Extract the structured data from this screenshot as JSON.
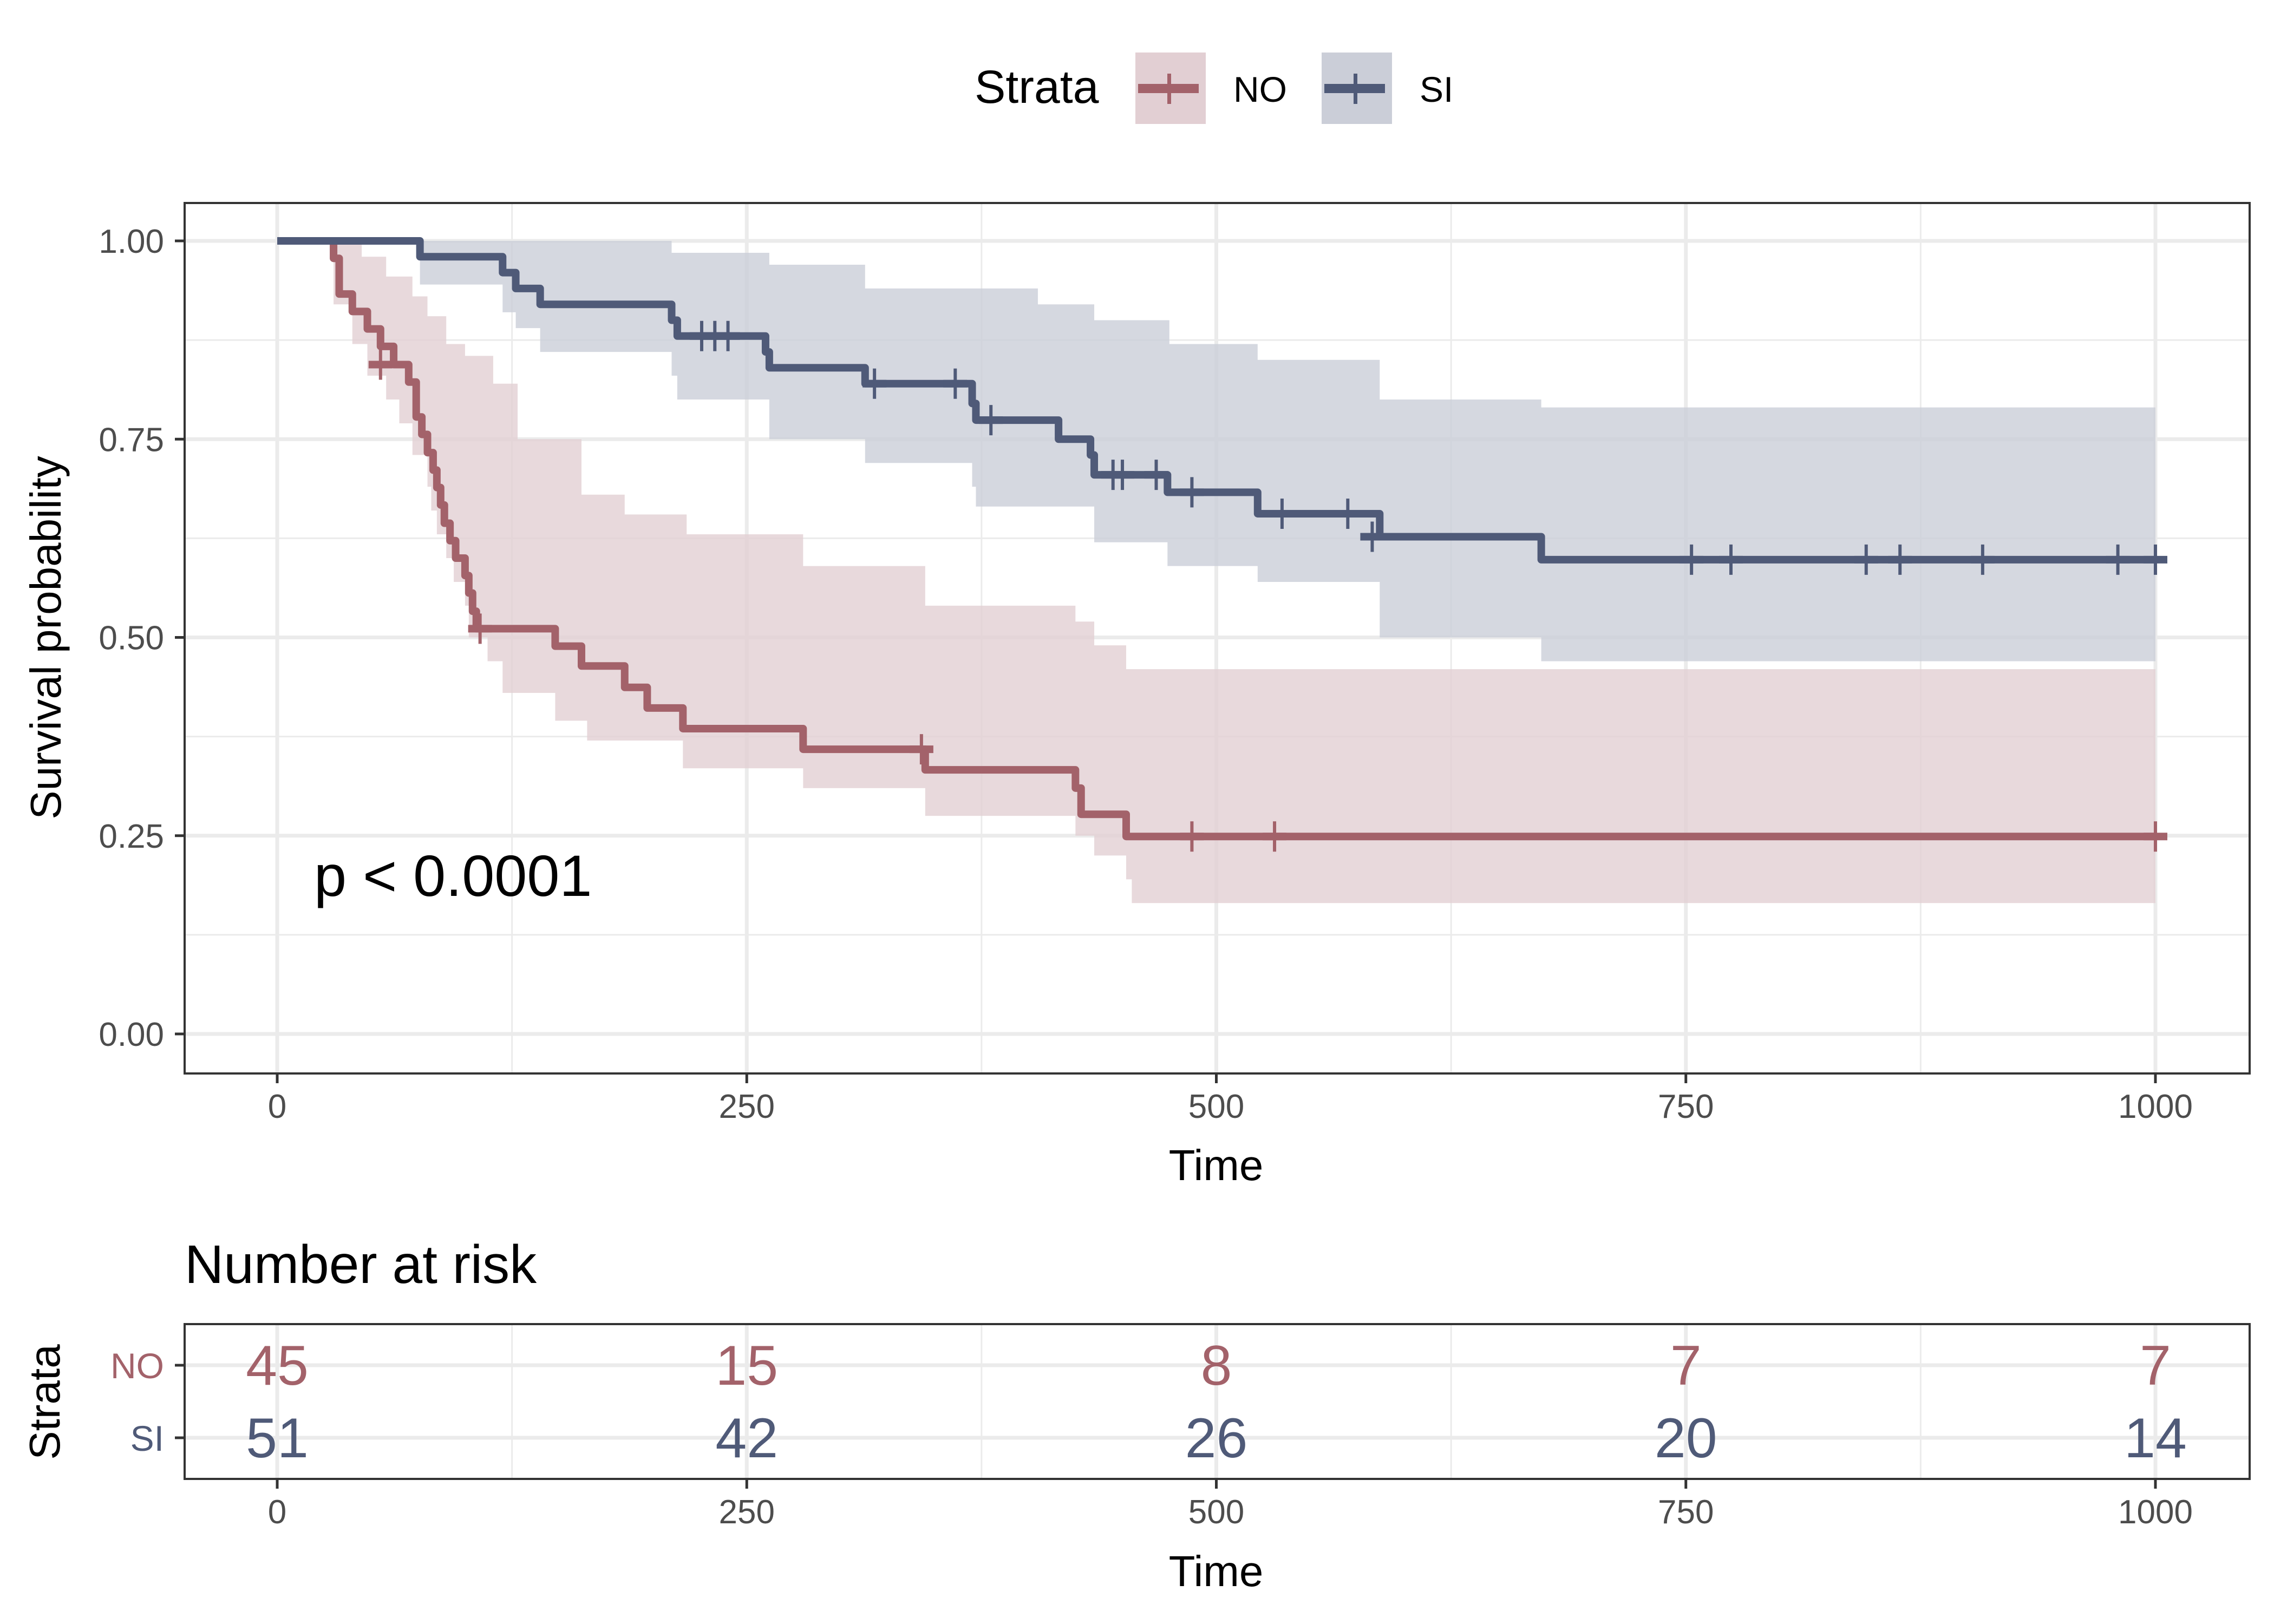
{
  "chart_data": [
    {
      "type": "line",
      "subtype": "kaplan-meier-step",
      "xlabel": "Time",
      "ylabel": "Survival probability",
      "xlim": [
        -50,
        1050
      ],
      "ylim": [
        -0.05,
        1.05
      ],
      "x_ticks": [
        "0",
        "250",
        "500",
        "750",
        "1000"
      ],
      "x_tick_values": [
        0,
        250,
        500,
        750,
        1000
      ],
      "y_ticks": [
        "0.00",
        "0.25",
        "0.50",
        "0.75",
        "1.00"
      ],
      "y_tick_values": [
        0,
        0.25,
        0.5,
        0.75,
        1.0
      ],
      "grid": true,
      "annotation": "p < 0.0001",
      "legend": {
        "title": "Strata",
        "position": "top",
        "entries": [
          "NO",
          "SI"
        ]
      },
      "series": [
        {
          "name": "NO",
          "color": "#A3626A",
          "fill": "#E2CFD3",
          "steps": [
            [
              0,
              1.0
            ],
            [
              30,
              0.978
            ],
            [
              33,
              0.933
            ],
            [
              40,
              0.911
            ],
            [
              48,
              0.889
            ],
            [
              55,
              0.867
            ],
            [
              62,
              0.844
            ],
            [
              70,
              0.822
            ],
            [
              74,
              0.778
            ],
            [
              77,
              0.756
            ],
            [
              80,
              0.733
            ],
            [
              83,
              0.711
            ],
            [
              85,
              0.689
            ],
            [
              87,
              0.667
            ],
            [
              89,
              0.644
            ],
            [
              92,
              0.622
            ],
            [
              95,
              0.6
            ],
            [
              100,
              0.578
            ],
            [
              102,
              0.556
            ],
            [
              104,
              0.533
            ],
            [
              106,
              0.511
            ],
            [
              148,
              0.489
            ],
            [
              162,
              0.464
            ],
            [
              185,
              0.437
            ],
            [
              197,
              0.411
            ],
            [
              216,
              0.385
            ],
            [
              280,
              0.359
            ],
            [
              345,
              0.333
            ],
            [
              425,
              0.31
            ],
            [
              428,
              0.277
            ],
            [
              452,
              0.249
            ],
            [
              1000,
              0.249
            ]
          ],
          "upper": [
            [
              0,
              1.0
            ],
            [
              33,
              1.0
            ],
            [
              45,
              0.98
            ],
            [
              58,
              0.955
            ],
            [
              72,
              0.93
            ],
            [
              80,
              0.905
            ],
            [
              90,
              0.87
            ],
            [
              100,
              0.855
            ],
            [
              115,
              0.82
            ],
            [
              128,
              0.75
            ],
            [
              162,
              0.68
            ],
            [
              185,
              0.655
            ],
            [
              218,
              0.63
            ],
            [
              280,
              0.59
            ],
            [
              345,
              0.54
            ],
            [
              425,
              0.52
            ],
            [
              435,
              0.49
            ],
            [
              452,
              0.46
            ],
            [
              1000,
              0.43
            ]
          ],
          "lower": [
            [
              0,
              1.0
            ],
            [
              30,
              0.92
            ],
            [
              40,
              0.87
            ],
            [
              48,
              0.83
            ],
            [
              58,
              0.8
            ],
            [
              65,
              0.77
            ],
            [
              72,
              0.73
            ],
            [
              80,
              0.69
            ],
            [
              82,
              0.66
            ],
            [
              85,
              0.63
            ],
            [
              90,
              0.6
            ],
            [
              94,
              0.57
            ],
            [
              100,
              0.54
            ],
            [
              102,
              0.5
            ],
            [
              112,
              0.47
            ],
            [
              120,
              0.43
            ],
            [
              148,
              0.395
            ],
            [
              165,
              0.37
            ],
            [
              216,
              0.335
            ],
            [
              280,
              0.31
            ],
            [
              345,
              0.275
            ],
            [
              425,
              0.25
            ],
            [
              435,
              0.225
            ],
            [
              452,
              0.195
            ],
            [
              455,
              0.165
            ],
            [
              1000,
              0.145
            ]
          ],
          "censor_times": [
            [
              55,
              0.844
            ],
            [
              108,
              0.511
            ],
            [
              343,
              0.359
            ],
            [
              487,
              0.249
            ],
            [
              531,
              0.249
            ],
            [
              1000,
              0.249
            ]
          ]
        },
        {
          "name": "SI",
          "color": "#4F5A78",
          "fill": "#CBCED8",
          "steps": [
            [
              0,
              1.0
            ],
            [
              76,
              0.98
            ],
            [
              120,
              0.96
            ],
            [
              127,
              0.94
            ],
            [
              140,
              0.92
            ],
            [
              210,
              0.9
            ],
            [
              213,
              0.88
            ],
            [
              260,
              0.86
            ],
            [
              262,
              0.84
            ],
            [
              313,
              0.82
            ],
            [
              370,
              0.795
            ],
            [
              372,
              0.774
            ],
            [
              416,
              0.75
            ],
            [
              433,
              0.73
            ],
            [
              435,
              0.705
            ],
            [
              474,
              0.683
            ],
            [
              522,
              0.656
            ],
            [
              587,
              0.627
            ],
            [
              673,
              0.598
            ],
            [
              1000,
              0.598
            ]
          ],
          "upper": [
            [
              0,
              1.0
            ],
            [
              76,
              1.0
            ],
            [
              210,
              0.985
            ],
            [
              262,
              0.97
            ],
            [
              313,
              0.94
            ],
            [
              405,
              0.92
            ],
            [
              435,
              0.9
            ],
            [
              475,
              0.87
            ],
            [
              522,
              0.85
            ],
            [
              587,
              0.8
            ],
            [
              673,
              0.79
            ],
            [
              1000,
              0.765
            ]
          ],
          "lower": [
            [
              0,
              1.0
            ],
            [
              76,
              0.945
            ],
            [
              120,
              0.91
            ],
            [
              127,
              0.89
            ],
            [
              140,
              0.86
            ],
            [
              210,
              0.83
            ],
            [
              213,
              0.8
            ],
            [
              262,
              0.75
            ],
            [
              313,
              0.72
            ],
            [
              370,
              0.69
            ],
            [
              372,
              0.665
            ],
            [
              435,
              0.62
            ],
            [
              474,
              0.59
            ],
            [
              522,
              0.57
            ],
            [
              587,
              0.5
            ],
            [
              673,
              0.47
            ],
            [
              1000,
              0.465
            ]
          ],
          "censor_times": [
            [
              226,
              0.88
            ],
            [
              233,
              0.88
            ],
            [
              240,
              0.88
            ],
            [
              318,
              0.82
            ],
            [
              361,
              0.82
            ],
            [
              380,
              0.774
            ],
            [
              445,
              0.705
            ],
            [
              450,
              0.705
            ],
            [
              468,
              0.705
            ],
            [
              487,
              0.683
            ],
            [
              535,
              0.656
            ],
            [
              570,
              0.656
            ],
            [
              583,
              0.627
            ],
            [
              753,
              0.598
            ],
            [
              774,
              0.598
            ],
            [
              846,
              0.598
            ],
            [
              864,
              0.598
            ],
            [
              908,
              0.598
            ],
            [
              980,
              0.598
            ],
            [
              1000,
              0.598
            ]
          ]
        }
      ]
    },
    {
      "type": "table",
      "title": "Number at risk",
      "ylabel": "Strata",
      "xlabel": "Time",
      "x_ticks": [
        "0",
        "250",
        "500",
        "750",
        "1000"
      ],
      "x_tick_values": [
        0,
        250,
        500,
        750,
        1000
      ],
      "rows": [
        {
          "name": "NO",
          "color": "#A3626A",
          "values": [
            "45",
            "15",
            "8",
            "7",
            "7"
          ]
        },
        {
          "name": "SI",
          "color": "#4F5A78",
          "values": [
            "51",
            "42",
            "26",
            "20",
            "14"
          ]
        }
      ]
    }
  ]
}
